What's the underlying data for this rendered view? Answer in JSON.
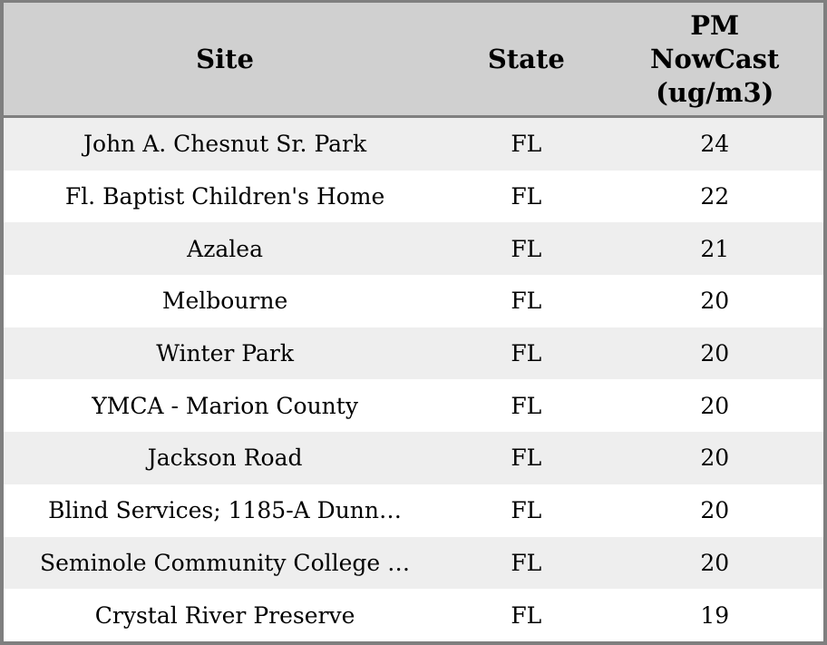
{
  "colors": {
    "header_bg": "#d0d0d0",
    "row_stripe_bg": "#eeeeee",
    "row_bg": "#ffffff",
    "frame_border": "#7f7f7f",
    "text": "#000000"
  },
  "table": {
    "columns": [
      {
        "id": "site",
        "label": "Site"
      },
      {
        "id": "state",
        "label": "State"
      },
      {
        "id": "pm_nowcast",
        "label": "PM\nNowCast\n(ug/m3)"
      }
    ],
    "rows": [
      {
        "site": "John A. Chesnut Sr. Park",
        "state": "FL",
        "pm_nowcast": 24
      },
      {
        "site": "Fl. Baptist Children's Home",
        "state": "FL",
        "pm_nowcast": 22
      },
      {
        "site": "Azalea",
        "state": "FL",
        "pm_nowcast": 21
      },
      {
        "site": "Melbourne",
        "state": "FL",
        "pm_nowcast": 20
      },
      {
        "site": "Winter Park",
        "state": "FL",
        "pm_nowcast": 20
      },
      {
        "site": "YMCA - Marion County",
        "state": "FL",
        "pm_nowcast": 20
      },
      {
        "site": "Jackson Road",
        "state": "FL",
        "pm_nowcast": 20
      },
      {
        "site": "Blind Services; 1185-A Dunn…",
        "state": "FL",
        "pm_nowcast": 20
      },
      {
        "site": "Seminole Community College …",
        "state": "FL",
        "pm_nowcast": 20
      },
      {
        "site": "Crystal River Preserve",
        "state": "FL",
        "pm_nowcast": 19
      }
    ]
  }
}
